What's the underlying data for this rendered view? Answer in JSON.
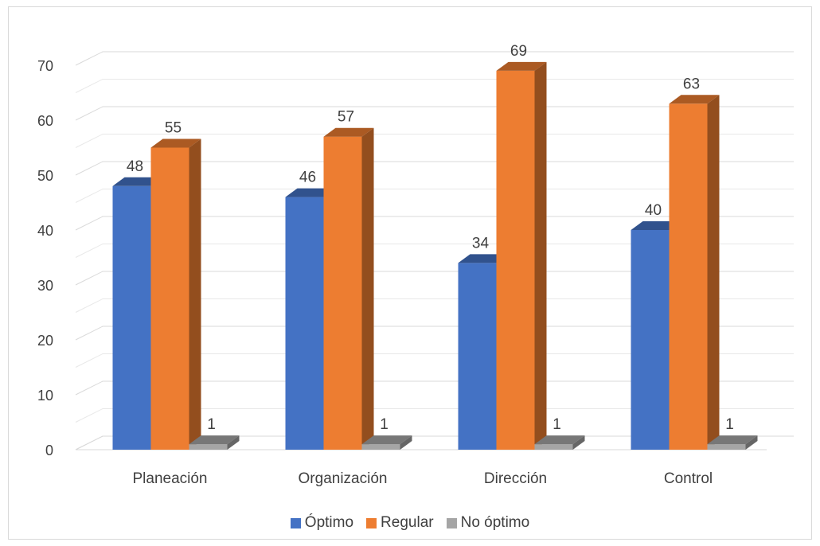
{
  "chart_data": {
    "type": "bar",
    "categories": [
      "Planeación",
      "Organización",
      "Dirección",
      "Control"
    ],
    "series": [
      {
        "name": "Óptimo",
        "color": "#4472C4",
        "values": [
          48,
          46,
          34,
          40
        ]
      },
      {
        "name": "Regular",
        "color": "#ED7D31",
        "values": [
          55,
          57,
          69,
          63
        ]
      },
      {
        "name": "No óptimo",
        "color": "#A5A5A5",
        "values": [
          1,
          1,
          1,
          1
        ]
      }
    ],
    "y_ticks": [
      "0",
      "10",
      "20",
      "30",
      "40",
      "50",
      "60",
      "70"
    ],
    "ylim": [
      0,
      70
    ],
    "grid": true,
    "legend_position": "bottom",
    "data_labels": true
  }
}
